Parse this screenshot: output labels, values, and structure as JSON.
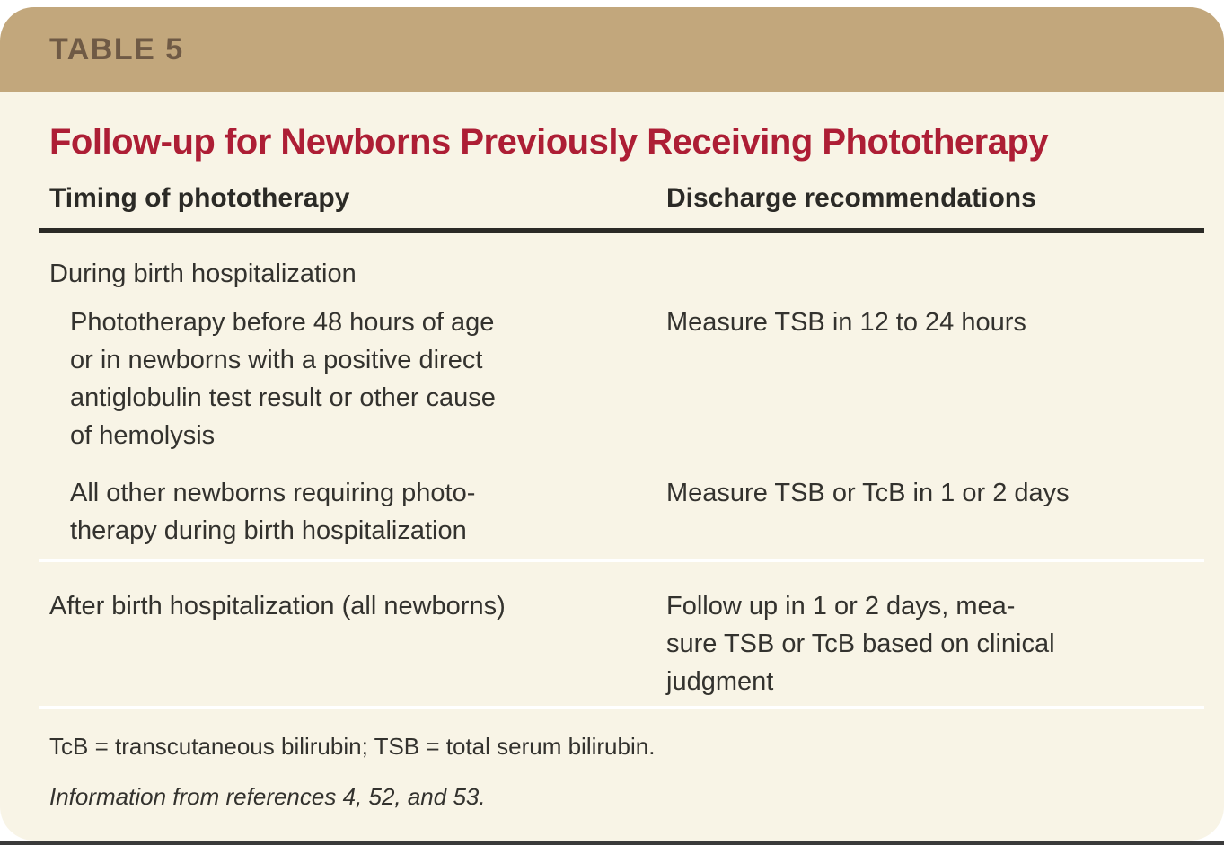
{
  "table_label": "TABLE 5",
  "title": "Follow-up for Newborns Previously Receiving Phototherapy",
  "columns": {
    "timing": "Timing of phototherapy",
    "recommendation": "Discharge recommendations"
  },
  "rows": [
    {
      "timing": [
        "During birth hospitalization"
      ],
      "recommendation": []
    },
    {
      "timing": [
        "Phototherapy before 48 hours of age",
        "or in newborns with a positive direct",
        "antiglobulin test result or other cause",
        "of hemolysis"
      ],
      "recommendation": [
        "Measure TSB in 12 to 24 hours"
      ]
    },
    {
      "timing": [
        "All other newborns requiring photo-",
        "therapy during birth hospitalization"
      ],
      "recommendation": [
        "Measure TSB or TcB in 1 or 2 days"
      ]
    },
    {
      "timing": [
        "After birth hospitalization (all newborns)"
      ],
      "recommendation": [
        "Follow up in 1 or 2 days, mea-",
        "sure TSB or TcB based on clinical",
        "judgment"
      ]
    }
  ],
  "footnotes": {
    "abbreviations": "TcB = transcutaneous bilirubin; TSB = total serum bilirubin.",
    "source": "Information from references 4, 52, and 53."
  },
  "colors": {
    "header_band": "#c2a77c",
    "card_background": "#f8f4e6",
    "title_red": "#ad1e35",
    "table_label_brown": "#6f5a45",
    "body_text": "#33322e",
    "header_rule": "#2b2a26",
    "row_divider": "#ffffff"
  }
}
